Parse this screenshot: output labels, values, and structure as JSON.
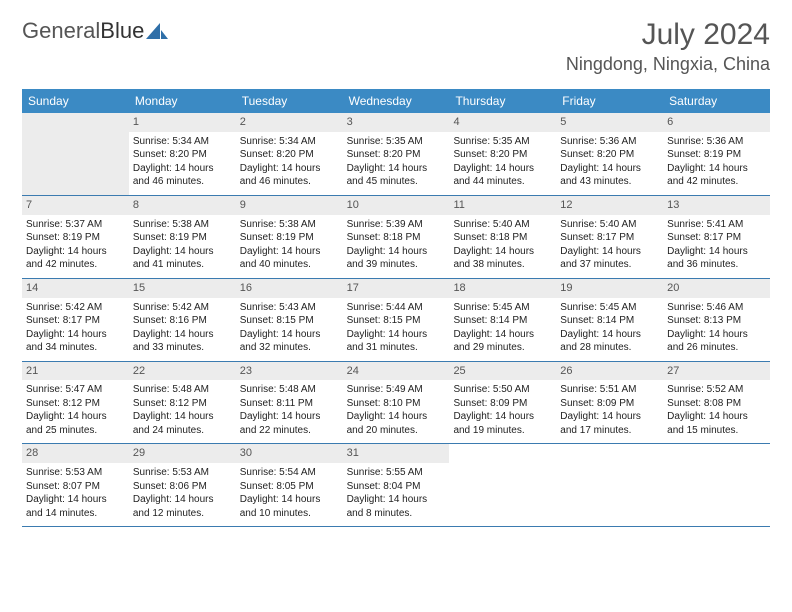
{
  "logo": {
    "text1": "General",
    "text2": "Blue"
  },
  "title": "July 2024",
  "location": "Ningdong, Ningxia, China",
  "colors": {
    "header_bg": "#3b8ac4",
    "header_text": "#ffffff",
    "daynum_bg": "#ececec",
    "border": "#3b7bb0",
    "title_color": "#555555",
    "body_text": "#222222"
  },
  "day_names": [
    "Sunday",
    "Monday",
    "Tuesday",
    "Wednesday",
    "Thursday",
    "Friday",
    "Saturday"
  ],
  "first_weekday": 1,
  "labels": {
    "sunrise": "Sunrise:",
    "sunset": "Sunset:",
    "daylight": "Daylight:"
  },
  "days": [
    {
      "n": 1,
      "sunrise": "5:34 AM",
      "sunset": "8:20 PM",
      "daylight": "14 hours and 46 minutes."
    },
    {
      "n": 2,
      "sunrise": "5:34 AM",
      "sunset": "8:20 PM",
      "daylight": "14 hours and 46 minutes."
    },
    {
      "n": 3,
      "sunrise": "5:35 AM",
      "sunset": "8:20 PM",
      "daylight": "14 hours and 45 minutes."
    },
    {
      "n": 4,
      "sunrise": "5:35 AM",
      "sunset": "8:20 PM",
      "daylight": "14 hours and 44 minutes."
    },
    {
      "n": 5,
      "sunrise": "5:36 AM",
      "sunset": "8:20 PM",
      "daylight": "14 hours and 43 minutes."
    },
    {
      "n": 6,
      "sunrise": "5:36 AM",
      "sunset": "8:19 PM",
      "daylight": "14 hours and 42 minutes."
    },
    {
      "n": 7,
      "sunrise": "5:37 AM",
      "sunset": "8:19 PM",
      "daylight": "14 hours and 42 minutes."
    },
    {
      "n": 8,
      "sunrise": "5:38 AM",
      "sunset": "8:19 PM",
      "daylight": "14 hours and 41 minutes."
    },
    {
      "n": 9,
      "sunrise": "5:38 AM",
      "sunset": "8:19 PM",
      "daylight": "14 hours and 40 minutes."
    },
    {
      "n": 10,
      "sunrise": "5:39 AM",
      "sunset": "8:18 PM",
      "daylight": "14 hours and 39 minutes."
    },
    {
      "n": 11,
      "sunrise": "5:40 AM",
      "sunset": "8:18 PM",
      "daylight": "14 hours and 38 minutes."
    },
    {
      "n": 12,
      "sunrise": "5:40 AM",
      "sunset": "8:17 PM",
      "daylight": "14 hours and 37 minutes."
    },
    {
      "n": 13,
      "sunrise": "5:41 AM",
      "sunset": "8:17 PM",
      "daylight": "14 hours and 36 minutes."
    },
    {
      "n": 14,
      "sunrise": "5:42 AM",
      "sunset": "8:17 PM",
      "daylight": "14 hours and 34 minutes."
    },
    {
      "n": 15,
      "sunrise": "5:42 AM",
      "sunset": "8:16 PM",
      "daylight": "14 hours and 33 minutes."
    },
    {
      "n": 16,
      "sunrise": "5:43 AM",
      "sunset": "8:15 PM",
      "daylight": "14 hours and 32 minutes."
    },
    {
      "n": 17,
      "sunrise": "5:44 AM",
      "sunset": "8:15 PM",
      "daylight": "14 hours and 31 minutes."
    },
    {
      "n": 18,
      "sunrise": "5:45 AM",
      "sunset": "8:14 PM",
      "daylight": "14 hours and 29 minutes."
    },
    {
      "n": 19,
      "sunrise": "5:45 AM",
      "sunset": "8:14 PM",
      "daylight": "14 hours and 28 minutes."
    },
    {
      "n": 20,
      "sunrise": "5:46 AM",
      "sunset": "8:13 PM",
      "daylight": "14 hours and 26 minutes."
    },
    {
      "n": 21,
      "sunrise": "5:47 AM",
      "sunset": "8:12 PM",
      "daylight": "14 hours and 25 minutes."
    },
    {
      "n": 22,
      "sunrise": "5:48 AM",
      "sunset": "8:12 PM",
      "daylight": "14 hours and 24 minutes."
    },
    {
      "n": 23,
      "sunrise": "5:48 AM",
      "sunset": "8:11 PM",
      "daylight": "14 hours and 22 minutes."
    },
    {
      "n": 24,
      "sunrise": "5:49 AM",
      "sunset": "8:10 PM",
      "daylight": "14 hours and 20 minutes."
    },
    {
      "n": 25,
      "sunrise": "5:50 AM",
      "sunset": "8:09 PM",
      "daylight": "14 hours and 19 minutes."
    },
    {
      "n": 26,
      "sunrise": "5:51 AM",
      "sunset": "8:09 PM",
      "daylight": "14 hours and 17 minutes."
    },
    {
      "n": 27,
      "sunrise": "5:52 AM",
      "sunset": "8:08 PM",
      "daylight": "14 hours and 15 minutes."
    },
    {
      "n": 28,
      "sunrise": "5:53 AM",
      "sunset": "8:07 PM",
      "daylight": "14 hours and 14 minutes."
    },
    {
      "n": 29,
      "sunrise": "5:53 AM",
      "sunset": "8:06 PM",
      "daylight": "14 hours and 12 minutes."
    },
    {
      "n": 30,
      "sunrise": "5:54 AM",
      "sunset": "8:05 PM",
      "daylight": "14 hours and 10 minutes."
    },
    {
      "n": 31,
      "sunrise": "5:55 AM",
      "sunset": "8:04 PM",
      "daylight": "14 hours and 8 minutes."
    }
  ]
}
